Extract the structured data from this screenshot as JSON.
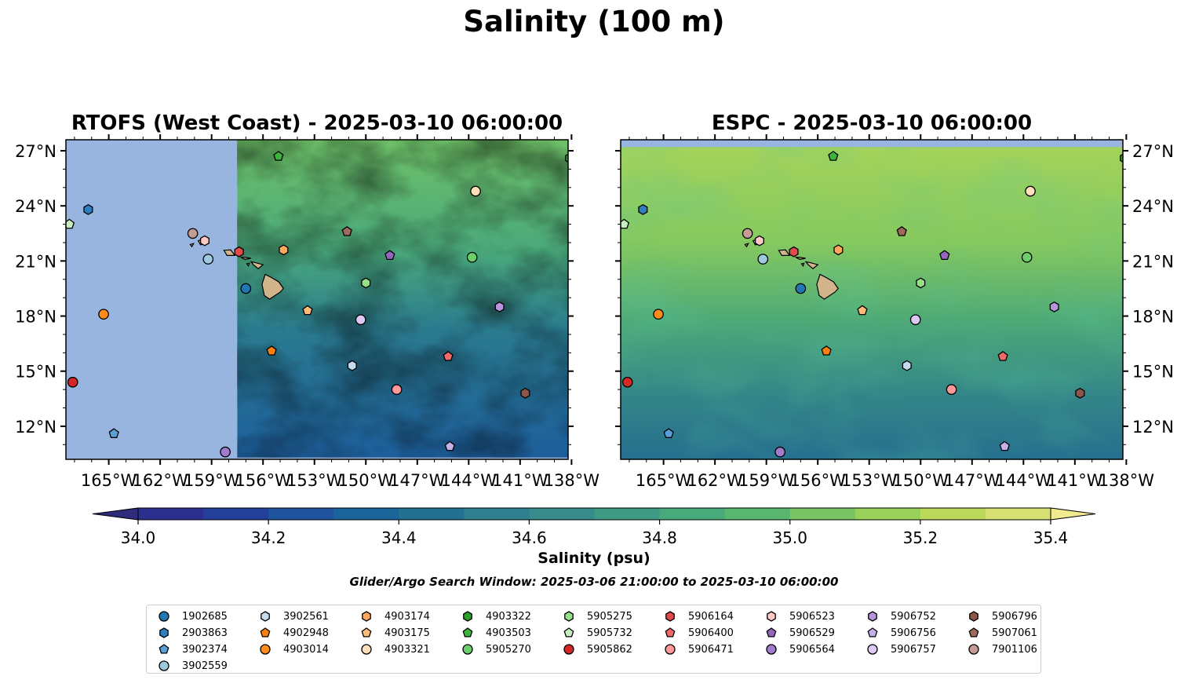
{
  "figure": {
    "title": "Salinity (100 m)",
    "search_window": "Glider/Argo Search Window: 2025-03-06 21:00:00 to 2025-03-10 06:00:00"
  },
  "panels": [
    {
      "title": "RTOFS (West Coast) - 2025-03-10 06:00:00",
      "lat_tick_side": "left",
      "model_coverage_west_lon": -157.5
    },
    {
      "title": "ESPC - 2025-03-10 06:00:00",
      "lat_tick_side": "right",
      "model_coverage_west_lon": -167.5
    }
  ],
  "map": {
    "lon_range": [
      -167.5,
      -138.2
    ],
    "lat_range": [
      10.2,
      27.6
    ],
    "lon_ticks": [
      -165,
      -162,
      -159,
      -156,
      -153,
      -150,
      -147,
      -144,
      -141,
      -138
    ],
    "lon_tick_labels": [
      "165°W",
      "162°W",
      "159°W",
      "156°W",
      "153°W",
      "150°W",
      "147°W",
      "144°W",
      "141°W",
      "138°W"
    ],
    "lat_ticks": [
      12,
      15,
      18,
      21,
      24,
      27
    ],
    "lat_tick_labels": [
      "12°N",
      "15°N",
      "18°N",
      "21°N",
      "24°N",
      "27°N"
    ],
    "land_color": "#d2b48c",
    "no_data_color": "#98b5df"
  },
  "colorbar": {
    "label": "Salinity (psu)",
    "min": 34.0,
    "max": 35.4,
    "step": 0.1,
    "extend": "both",
    "tick_values": [
      34.0,
      34.2,
      34.4,
      34.6,
      34.8,
      35.0,
      35.2,
      35.4
    ],
    "tick_labels": [
      "34.0",
      "34.2",
      "34.4",
      "34.6",
      "34.8",
      "35.0",
      "35.2",
      "35.4"
    ],
    "colors": [
      "#2e2a7c",
      "#2b2f8e",
      "#25409a",
      "#1f539d",
      "#1b649a",
      "#237191",
      "#2f7f8e",
      "#378b8a",
      "#3f9b83",
      "#48aa7a",
      "#59b66f",
      "#78c463",
      "#98d05a",
      "#bcd95c",
      "#d7e073",
      "#f2ea8e"
    ]
  },
  "floats": [
    {
      "id": "1902685",
      "lon": -157.0,
      "lat": 19.5,
      "marker": "circle",
      "color": "#1f77b4"
    },
    {
      "id": "2903863",
      "lon": -166.2,
      "lat": 23.8,
      "marker": "hexagon",
      "color": "#2f7fbf"
    },
    {
      "id": "3902374",
      "lon": -164.7,
      "lat": 11.6,
      "marker": "pentagon",
      "color": "#5aa0d8"
    },
    {
      "id": "3902559",
      "lon": -159.2,
      "lat": 21.1,
      "marker": "circle",
      "color": "#9ecae1"
    },
    {
      "id": "3902561",
      "lon": -150.8,
      "lat": 15.3,
      "marker": "hexagon",
      "color": "#c6dbef"
    },
    {
      "id": "4902948",
      "lon": -155.5,
      "lat": 16.1,
      "marker": "pentagon",
      "color": "#ff7f0e"
    },
    {
      "id": "4903014",
      "lon": -165.3,
      "lat": 18.1,
      "marker": "circle",
      "color": "#ff8c1a"
    },
    {
      "id": "4903174",
      "lon": -154.8,
      "lat": 21.6,
      "marker": "hexagon",
      "color": "#ffa75a"
    },
    {
      "id": "4903175",
      "lon": -153.4,
      "lat": 18.3,
      "marker": "pentagon",
      "color": "#ffbb78"
    },
    {
      "id": "4903321",
      "lon": -143.6,
      "lat": 24.8,
      "marker": "circle",
      "color": "#ffe0b8"
    },
    {
      "id": "4903322",
      "lon": -138.1,
      "lat": 26.6,
      "marker": "hexagon",
      "color": "#2ca02c"
    },
    {
      "id": "4903503",
      "lon": -155.1,
      "lat": 26.7,
      "marker": "pentagon",
      "color": "#3cb33c"
    },
    {
      "id": "5905270",
      "lon": -143.8,
      "lat": 21.2,
      "marker": "circle",
      "color": "#6ccf6c"
    },
    {
      "id": "5905275",
      "lon": -150.0,
      "lat": 19.8,
      "marker": "hexagon",
      "color": "#98df8a"
    },
    {
      "id": "5905732",
      "lon": -167.3,
      "lat": 23.0,
      "marker": "pentagon",
      "color": "#c7f0c0"
    },
    {
      "id": "5905862",
      "lon": -167.1,
      "lat": 14.4,
      "marker": "circle",
      "color": "#d62728"
    },
    {
      "id": "5906164",
      "lon": -157.4,
      "lat": 21.5,
      "marker": "hexagon",
      "color": "#e34a4a"
    },
    {
      "id": "5906400",
      "lon": -145.2,
      "lat": 15.8,
      "marker": "pentagon",
      "color": "#ee6a6a"
    },
    {
      "id": "5906471",
      "lon": -148.2,
      "lat": 14.0,
      "marker": "circle",
      "color": "#ff9896"
    },
    {
      "id": "5906523",
      "lon": -159.4,
      "lat": 22.1,
      "marker": "hexagon",
      "color": "#ffc9c8"
    },
    {
      "id": "5906529",
      "lon": -148.6,
      "lat": 21.3,
      "marker": "pentagon",
      "color": "#9467bd"
    },
    {
      "id": "5906564",
      "lon": -158.2,
      "lat": 10.6,
      "marker": "circle",
      "color": "#a27ccc"
    },
    {
      "id": "5906752",
      "lon": -142.2,
      "lat": 18.5,
      "marker": "hexagon",
      "color": "#b894dd"
    },
    {
      "id": "5906756",
      "lon": -145.1,
      "lat": 10.9,
      "marker": "pentagon",
      "color": "#c5b0e8"
    },
    {
      "id": "5906757",
      "lon": -150.3,
      "lat": 17.8,
      "marker": "circle",
      "color": "#dcc9f4"
    },
    {
      "id": "5906796",
      "lon": -140.7,
      "lat": 13.8,
      "marker": "hexagon",
      "color": "#8c564b"
    },
    {
      "id": "5907061",
      "lon": -151.1,
      "lat": 22.6,
      "marker": "pentagon",
      "color": "#a0695d"
    },
    {
      "id": "7901106",
      "lon": -160.1,
      "lat": 22.5,
      "marker": "circle",
      "color": "#c49c94"
    }
  ]
}
